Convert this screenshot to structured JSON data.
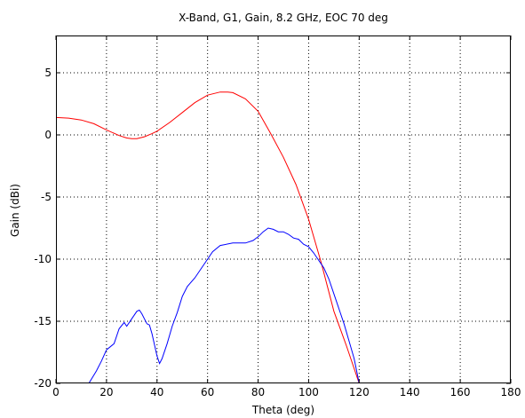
{
  "chart_data": {
    "type": "line",
    "title": "X-Band, G1, Gain, 8.2 GHz, EOC 70 deg",
    "xlabel": "Theta (deg)",
    "ylabel": "Gain (dBi)",
    "xlim": [
      0,
      180
    ],
    "ylim": [
      -20,
      8
    ],
    "xticks": [
      0,
      20,
      40,
      60,
      80,
      100,
      120,
      140,
      160,
      180
    ],
    "yticks": [
      -20,
      -15,
      -10,
      -5,
      0,
      5
    ],
    "grid": true,
    "series": [
      {
        "color": "#ff0000",
        "x": [
          0,
          5,
          10,
          15,
          20,
          25,
          28,
          30,
          32,
          35,
          38,
          40,
          45,
          50,
          55,
          60,
          65,
          68,
          70,
          75,
          80,
          85,
          90,
          95,
          100,
          105,
          110,
          115,
          120
        ],
        "y": [
          1.4,
          1.35,
          1.2,
          0.9,
          0.4,
          -0.05,
          -0.25,
          -0.3,
          -0.3,
          -0.15,
          0.1,
          0.3,
          1.0,
          1.8,
          2.6,
          3.2,
          3.45,
          3.45,
          3.4,
          2.9,
          1.9,
          0.1,
          -1.8,
          -4.0,
          -6.8,
          -10.3,
          -14.2,
          -17.0,
          -20.0
        ]
      },
      {
        "color": "#0000ff",
        "x": [
          13,
          16,
          18,
          20,
          23,
          25,
          27,
          28,
          30,
          32,
          33,
          34,
          36,
          37,
          38,
          40,
          41,
          42,
          44,
          46,
          48,
          50,
          52,
          55,
          58,
          60,
          62,
          65,
          70,
          75,
          78,
          80,
          82,
          84,
          86,
          88,
          90,
          92,
          94,
          96,
          98,
          100,
          102,
          104,
          106,
          108,
          110,
          112,
          114,
          116,
          118,
          120
        ],
        "y": [
          -20.0,
          -19.0,
          -18.2,
          -17.3,
          -16.8,
          -15.6,
          -15.1,
          -15.4,
          -14.8,
          -14.2,
          -14.1,
          -14.4,
          -15.2,
          -15.3,
          -16.0,
          -17.8,
          -18.4,
          -18.0,
          -16.8,
          -15.4,
          -14.3,
          -13.0,
          -12.2,
          -11.5,
          -10.6,
          -10.0,
          -9.4,
          -8.9,
          -8.7,
          -8.7,
          -8.5,
          -8.2,
          -7.8,
          -7.5,
          -7.6,
          -7.8,
          -7.8,
          -8.0,
          -8.3,
          -8.4,
          -8.8,
          -9.0,
          -9.5,
          -10.1,
          -10.7,
          -11.6,
          -12.8,
          -14.0,
          -15.2,
          -16.6,
          -18.0,
          -20.0
        ]
      }
    ]
  }
}
